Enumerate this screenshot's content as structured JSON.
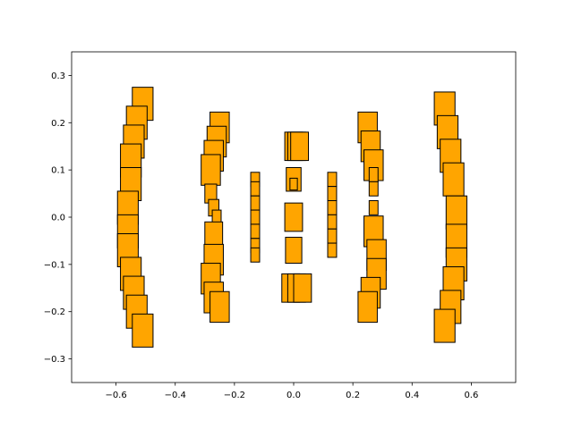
{
  "chart_data": {
    "type": "scatter",
    "title": "",
    "xlabel": "",
    "ylabel": "",
    "xlim": [
      -0.75,
      0.75
    ],
    "ylim": [
      -0.35,
      0.35
    ],
    "grid": false,
    "legend": "none",
    "marker": "square",
    "marker_face_color": "#ffa500",
    "marker_edge_color": "#000000",
    "x_ticks": [
      -0.6,
      -0.4,
      -0.2,
      0.0,
      0.2,
      0.4,
      0.6
    ],
    "x_tick_labels": [
      "−0.6",
      "−0.4",
      "−0.2",
      "0.0",
      "0.2",
      "0.4",
      "0.6"
    ],
    "y_ticks": [
      -0.3,
      -0.2,
      -0.1,
      0.0,
      0.1,
      0.2,
      0.3
    ],
    "y_tick_labels": [
      "−0.3",
      "−0.2",
      "−0.1",
      "0.0",
      "0.1",
      "0.2",
      "0.3"
    ],
    "point_size_units": "data units (side length)",
    "points": [
      {
        "x": -0.51,
        "y": 0.24,
        "size": 0.07
      },
      {
        "x": -0.53,
        "y": 0.2,
        "size": 0.07
      },
      {
        "x": -0.54,
        "y": 0.16,
        "size": 0.07
      },
      {
        "x": -0.55,
        "y": 0.12,
        "size": 0.07
      },
      {
        "x": -0.55,
        "y": 0.07,
        "size": 0.07
      },
      {
        "x": -0.56,
        "y": 0.02,
        "size": 0.07
      },
      {
        "x": -0.56,
        "y": -0.03,
        "size": 0.07
      },
      {
        "x": -0.56,
        "y": -0.07,
        "size": 0.07
      },
      {
        "x": -0.55,
        "y": -0.12,
        "size": 0.07
      },
      {
        "x": -0.54,
        "y": -0.16,
        "size": 0.07
      },
      {
        "x": -0.53,
        "y": -0.2,
        "size": 0.07
      },
      {
        "x": -0.51,
        "y": -0.24,
        "size": 0.07
      },
      {
        "x": -0.25,
        "y": 0.19,
        "size": 0.065
      },
      {
        "x": -0.26,
        "y": 0.16,
        "size": 0.065
      },
      {
        "x": -0.27,
        "y": 0.13,
        "size": 0.065
      },
      {
        "x": -0.28,
        "y": 0.1,
        "size": 0.065
      },
      {
        "x": -0.28,
        "y": 0.05,
        "size": 0.04
      },
      {
        "x": -0.27,
        "y": 0.02,
        "size": 0.035
      },
      {
        "x": -0.26,
        "y": 0.0,
        "size": 0.03
      },
      {
        "x": -0.27,
        "y": -0.04,
        "size": 0.06
      },
      {
        "x": -0.27,
        "y": -0.09,
        "size": 0.065
      },
      {
        "x": -0.28,
        "y": -0.13,
        "size": 0.065
      },
      {
        "x": -0.27,
        "y": -0.17,
        "size": 0.065
      },
      {
        "x": -0.25,
        "y": -0.19,
        "size": 0.065
      },
      {
        "x": -0.13,
        "y": 0.08,
        "size": 0.03
      },
      {
        "x": -0.13,
        "y": 0.06,
        "size": 0.03
      },
      {
        "x": -0.13,
        "y": 0.03,
        "size": 0.03
      },
      {
        "x": -0.13,
        "y": 0.0,
        "size": 0.03
      },
      {
        "x": -0.13,
        "y": -0.03,
        "size": 0.03
      },
      {
        "x": -0.13,
        "y": -0.06,
        "size": 0.03
      },
      {
        "x": -0.13,
        "y": -0.08,
        "size": 0.03
      },
      {
        "x": 0.0,
        "y": 0.15,
        "size": 0.06
      },
      {
        "x": 0.01,
        "y": 0.15,
        "size": 0.06
      },
      {
        "x": 0.02,
        "y": 0.15,
        "size": 0.06
      },
      {
        "x": 0.0,
        "y": 0.08,
        "size": 0.05
      },
      {
        "x": 0.0,
        "y": 0.07,
        "size": 0.025
      },
      {
        "x": 0.0,
        "y": 0.0,
        "size": 0.06
      },
      {
        "x": 0.0,
        "y": -0.07,
        "size": 0.055
      },
      {
        "x": -0.01,
        "y": -0.15,
        "size": 0.06
      },
      {
        "x": 0.01,
        "y": -0.15,
        "size": 0.06
      },
      {
        "x": 0.03,
        "y": -0.15,
        "size": 0.06
      },
      {
        "x": 0.13,
        "y": 0.08,
        "size": 0.03
      },
      {
        "x": 0.13,
        "y": 0.05,
        "size": 0.03
      },
      {
        "x": 0.13,
        "y": 0.02,
        "size": 0.03
      },
      {
        "x": 0.13,
        "y": -0.01,
        "size": 0.03
      },
      {
        "x": 0.13,
        "y": -0.04,
        "size": 0.03
      },
      {
        "x": 0.13,
        "y": -0.07,
        "size": 0.03
      },
      {
        "x": 0.25,
        "y": 0.19,
        "size": 0.065
      },
      {
        "x": 0.26,
        "y": 0.15,
        "size": 0.065
      },
      {
        "x": 0.27,
        "y": 0.11,
        "size": 0.065
      },
      {
        "x": 0.27,
        "y": 0.09,
        "size": 0.03
      },
      {
        "x": 0.27,
        "y": 0.06,
        "size": 0.03
      },
      {
        "x": 0.27,
        "y": 0.02,
        "size": 0.03
      },
      {
        "x": 0.27,
        "y": -0.03,
        "size": 0.065
      },
      {
        "x": 0.28,
        "y": -0.08,
        "size": 0.065
      },
      {
        "x": 0.28,
        "y": -0.12,
        "size": 0.065
      },
      {
        "x": 0.26,
        "y": -0.16,
        "size": 0.065
      },
      {
        "x": 0.25,
        "y": -0.19,
        "size": 0.065
      },
      {
        "x": 0.51,
        "y": 0.23,
        "size": 0.07
      },
      {
        "x": 0.52,
        "y": 0.18,
        "size": 0.07
      },
      {
        "x": 0.53,
        "y": 0.13,
        "size": 0.07
      },
      {
        "x": 0.54,
        "y": 0.08,
        "size": 0.07
      },
      {
        "x": 0.55,
        "y": 0.01,
        "size": 0.07
      },
      {
        "x": 0.55,
        "y": -0.05,
        "size": 0.07
      },
      {
        "x": 0.55,
        "y": -0.1,
        "size": 0.07
      },
      {
        "x": 0.54,
        "y": -0.14,
        "size": 0.07
      },
      {
        "x": 0.53,
        "y": -0.19,
        "size": 0.07
      },
      {
        "x": 0.51,
        "y": -0.23,
        "size": 0.07
      }
    ]
  }
}
